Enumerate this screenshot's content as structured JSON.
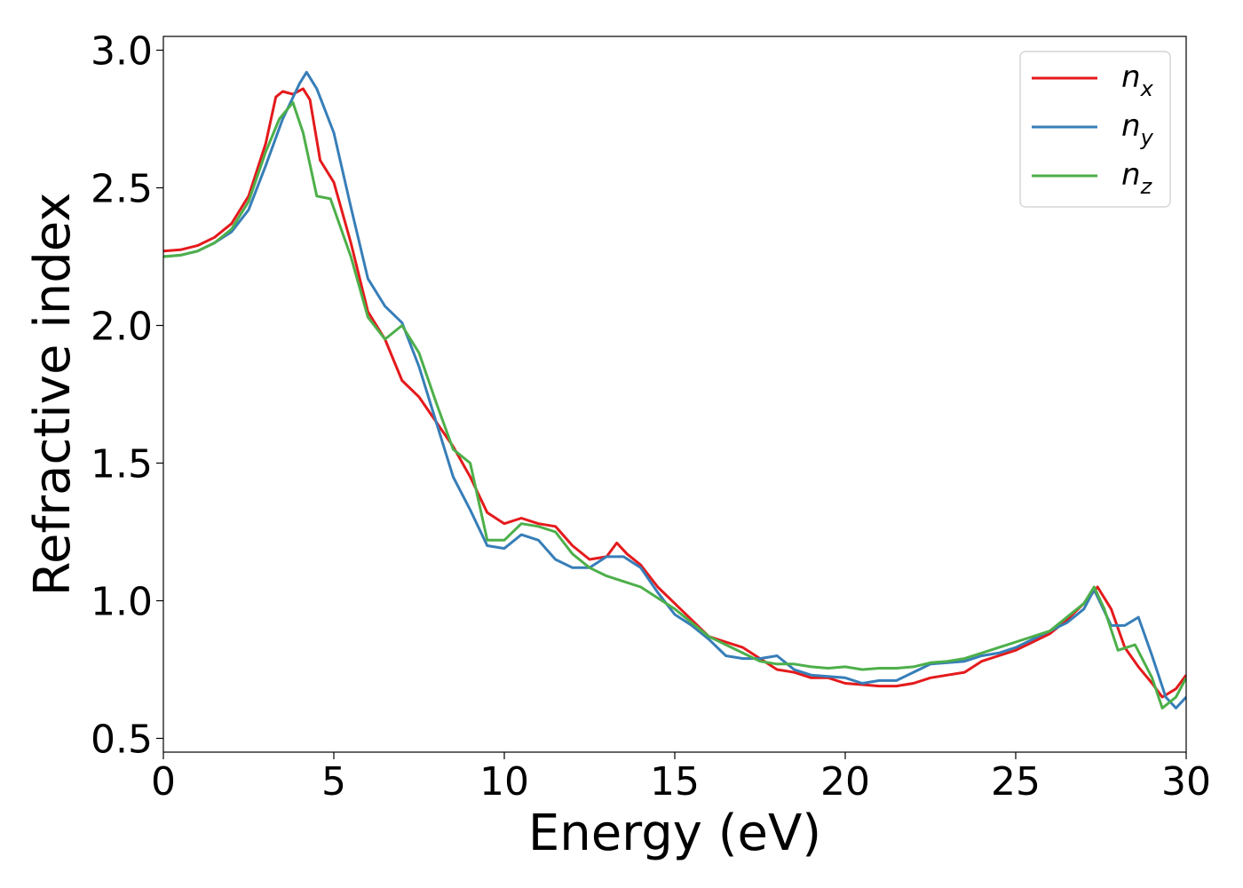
{
  "chart_data": {
    "type": "line",
    "title": "",
    "xlabel": "Energy (eV)",
    "ylabel": "Refractive index",
    "xlim": [
      0,
      30
    ],
    "ylim": [
      0.45,
      3.05
    ],
    "xticks": [
      0,
      5,
      10,
      15,
      20,
      25,
      30
    ],
    "yticks": [
      0.5,
      1.0,
      1.5,
      2.0,
      2.5,
      3.0
    ],
    "xtick_labels": [
      "0",
      "5",
      "10",
      "15",
      "20",
      "25",
      "30"
    ],
    "ytick_labels": [
      "0.5",
      "1.0",
      "1.5",
      "2.0",
      "2.5",
      "3.0"
    ],
    "grid": false,
    "legend_position": "top-right",
    "series": [
      {
        "name": "n_x",
        "label_base": "n",
        "label_sub": "x",
        "color": "#e41a1c",
        "points": [
          [
            0,
            2.27
          ],
          [
            0.5,
            2.275
          ],
          [
            1,
            2.29
          ],
          [
            1.5,
            2.32
          ],
          [
            2,
            2.37
          ],
          [
            2.5,
            2.47
          ],
          [
            3,
            2.66
          ],
          [
            3.3,
            2.83
          ],
          [
            3.5,
            2.85
          ],
          [
            3.8,
            2.84
          ],
          [
            4.1,
            2.86
          ],
          [
            4.3,
            2.82
          ],
          [
            4.6,
            2.6
          ],
          [
            5,
            2.52
          ],
          [
            5.5,
            2.3
          ],
          [
            6,
            2.05
          ],
          [
            6.5,
            1.95
          ],
          [
            7,
            1.8
          ],
          [
            7.5,
            1.74
          ],
          [
            8,
            1.65
          ],
          [
            8.5,
            1.56
          ],
          [
            9,
            1.45
          ],
          [
            9.5,
            1.32
          ],
          [
            10,
            1.28
          ],
          [
            10.5,
            1.3
          ],
          [
            11,
            1.28
          ],
          [
            11.5,
            1.27
          ],
          [
            12,
            1.2
          ],
          [
            12.5,
            1.15
          ],
          [
            13,
            1.16
          ],
          [
            13.3,
            1.21
          ],
          [
            13.6,
            1.17
          ],
          [
            14,
            1.13
          ],
          [
            14.5,
            1.05
          ],
          [
            15,
            0.99
          ],
          [
            15.5,
            0.93
          ],
          [
            16,
            0.87
          ],
          [
            16.5,
            0.85
          ],
          [
            17,
            0.83
          ],
          [
            17.5,
            0.79
          ],
          [
            18,
            0.75
          ],
          [
            18.5,
            0.74
          ],
          [
            19,
            0.72
          ],
          [
            19.5,
            0.72
          ],
          [
            20,
            0.7
          ],
          [
            20.5,
            0.695
          ],
          [
            21,
            0.69
          ],
          [
            21.5,
            0.69
          ],
          [
            22,
            0.7
          ],
          [
            22.5,
            0.72
          ],
          [
            23,
            0.73
          ],
          [
            23.5,
            0.74
          ],
          [
            24,
            0.78
          ],
          [
            24.5,
            0.8
          ],
          [
            25,
            0.82
          ],
          [
            25.5,
            0.85
          ],
          [
            26,
            0.88
          ],
          [
            26.5,
            0.93
          ],
          [
            27,
            0.99
          ],
          [
            27.4,
            1.05
          ],
          [
            27.8,
            0.97
          ],
          [
            28.2,
            0.83
          ],
          [
            28.6,
            0.76
          ],
          [
            29,
            0.7
          ],
          [
            29.3,
            0.65
          ],
          [
            29.7,
            0.68
          ],
          [
            30,
            0.73
          ]
        ]
      },
      {
        "name": "n_y",
        "label_base": "n",
        "label_sub": "y",
        "color": "#377eb8",
        "points": [
          [
            0,
            2.25
          ],
          [
            0.5,
            2.255
          ],
          [
            1,
            2.27
          ],
          [
            1.5,
            2.3
          ],
          [
            2,
            2.34
          ],
          [
            2.5,
            2.42
          ],
          [
            3,
            2.58
          ],
          [
            3.5,
            2.75
          ],
          [
            4,
            2.88
          ],
          [
            4.2,
            2.92
          ],
          [
            4.5,
            2.86
          ],
          [
            5,
            2.7
          ],
          [
            5.5,
            2.43
          ],
          [
            6,
            2.17
          ],
          [
            6.5,
            2.07
          ],
          [
            7,
            2.01
          ],
          [
            7.5,
            1.85
          ],
          [
            8,
            1.65
          ],
          [
            8.5,
            1.45
          ],
          [
            9,
            1.33
          ],
          [
            9.5,
            1.2
          ],
          [
            10,
            1.19
          ],
          [
            10.5,
            1.24
          ],
          [
            11,
            1.22
          ],
          [
            11.5,
            1.15
          ],
          [
            12,
            1.12
          ],
          [
            12.5,
            1.12
          ],
          [
            13,
            1.16
          ],
          [
            13.5,
            1.16
          ],
          [
            14,
            1.12
          ],
          [
            14.5,
            1.03
          ],
          [
            15,
            0.95
          ],
          [
            15.5,
            0.91
          ],
          [
            16,
            0.86
          ],
          [
            16.5,
            0.8
          ],
          [
            17,
            0.79
          ],
          [
            17.5,
            0.79
          ],
          [
            18,
            0.8
          ],
          [
            18.5,
            0.75
          ],
          [
            19,
            0.73
          ],
          [
            19.5,
            0.725
          ],
          [
            20,
            0.72
          ],
          [
            20.5,
            0.7
          ],
          [
            21,
            0.71
          ],
          [
            21.5,
            0.71
          ],
          [
            22,
            0.74
          ],
          [
            22.5,
            0.77
          ],
          [
            23,
            0.775
          ],
          [
            23.5,
            0.78
          ],
          [
            24,
            0.8
          ],
          [
            24.5,
            0.81
          ],
          [
            25,
            0.83
          ],
          [
            25.5,
            0.86
          ],
          [
            26,
            0.89
          ],
          [
            26.5,
            0.92
          ],
          [
            27,
            0.97
          ],
          [
            27.3,
            1.04
          ],
          [
            27.8,
            0.91
          ],
          [
            28.2,
            0.91
          ],
          [
            28.6,
            0.94
          ],
          [
            29,
            0.8
          ],
          [
            29.4,
            0.65
          ],
          [
            29.7,
            0.61
          ],
          [
            30,
            0.65
          ]
        ]
      },
      {
        "name": "n_z",
        "label_base": "n",
        "label_sub": "z",
        "color": "#4daf4a",
        "points": [
          [
            0,
            2.25
          ],
          [
            0.5,
            2.255
          ],
          [
            1,
            2.27
          ],
          [
            1.5,
            2.3
          ],
          [
            2,
            2.35
          ],
          [
            2.5,
            2.45
          ],
          [
            3,
            2.63
          ],
          [
            3.4,
            2.75
          ],
          [
            3.8,
            2.81
          ],
          [
            4.1,
            2.7
          ],
          [
            4.5,
            2.47
          ],
          [
            4.9,
            2.46
          ],
          [
            5.5,
            2.25
          ],
          [
            6,
            2.03
          ],
          [
            6.5,
            1.95
          ],
          [
            7,
            2.0
          ],
          [
            7.5,
            1.9
          ],
          [
            8,
            1.72
          ],
          [
            8.5,
            1.55
          ],
          [
            9,
            1.5
          ],
          [
            9.5,
            1.22
          ],
          [
            10,
            1.22
          ],
          [
            10.5,
            1.28
          ],
          [
            11,
            1.27
          ],
          [
            11.5,
            1.25
          ],
          [
            12,
            1.17
          ],
          [
            12.5,
            1.12
          ],
          [
            13,
            1.09
          ],
          [
            13.5,
            1.07
          ],
          [
            14,
            1.05
          ],
          [
            14.5,
            1.01
          ],
          [
            15,
            0.97
          ],
          [
            15.5,
            0.92
          ],
          [
            16,
            0.87
          ],
          [
            16.5,
            0.84
          ],
          [
            17,
            0.81
          ],
          [
            17.5,
            0.78
          ],
          [
            18,
            0.77
          ],
          [
            18.5,
            0.77
          ],
          [
            19,
            0.76
          ],
          [
            19.5,
            0.755
          ],
          [
            20,
            0.76
          ],
          [
            20.5,
            0.75
          ],
          [
            21,
            0.755
          ],
          [
            21.5,
            0.755
          ],
          [
            22,
            0.76
          ],
          [
            22.5,
            0.775
          ],
          [
            23,
            0.78
          ],
          [
            23.5,
            0.79
          ],
          [
            24,
            0.81
          ],
          [
            24.5,
            0.83
          ],
          [
            25,
            0.85
          ],
          [
            25.5,
            0.87
          ],
          [
            26,
            0.89
          ],
          [
            26.5,
            0.94
          ],
          [
            27,
            0.99
          ],
          [
            27.3,
            1.05
          ],
          [
            27.6,
            0.97
          ],
          [
            28,
            0.82
          ],
          [
            28.5,
            0.84
          ],
          [
            29,
            0.72
          ],
          [
            29.3,
            0.61
          ],
          [
            29.7,
            0.65
          ],
          [
            30,
            0.72
          ]
        ]
      }
    ]
  }
}
